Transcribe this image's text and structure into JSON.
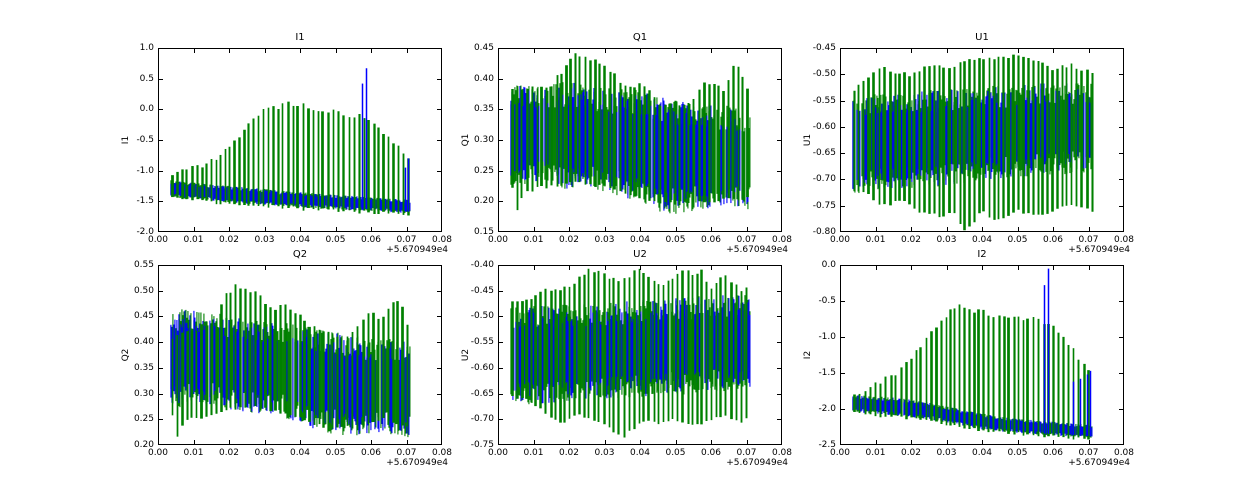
{
  "figure": {
    "background": "#ffffff"
  },
  "colors": {
    "series_green": "#008000",
    "series_blue": "#0000ff",
    "axis": "#000000",
    "text": "#000000"
  },
  "x_axis": {
    "offset_label": "+5.670949e4",
    "tick_labels": [
      "0.00",
      "0.01",
      "0.02",
      "0.03",
      "0.04",
      "0.05",
      "0.06",
      "0.07",
      "0.08"
    ]
  },
  "chart_data": [
    {
      "type": "line",
      "title": "I1",
      "ylabel": "I1",
      "xlim": [
        0,
        0.08
      ],
      "ylim": [
        -2.0,
        1.0
      ],
      "ytick_labels": [
        "1.0",
        "0.5",
        "0.0",
        "-0.5",
        "-1.0",
        "-1.5",
        "-2.0"
      ],
      "x_range": [
        0.0035,
        0.071
      ],
      "band_style": "solid-baseline",
      "series": {
        "blue_band": {
          "x": [
            0.0035,
            0.01,
            0.015,
            0.02,
            0.025,
            0.03,
            0.035,
            0.04,
            0.045,
            0.05,
            0.055,
            0.06,
            0.065,
            0.071
          ],
          "top": [
            -1.18,
            -1.23,
            -1.25,
            -1.28,
            -1.3,
            -1.33,
            -1.36,
            -1.38,
            -1.4,
            -1.42,
            -1.44,
            -1.46,
            -1.48,
            -1.5
          ],
          "bottom": [
            -1.4,
            -1.44,
            -1.46,
            -1.49,
            -1.51,
            -1.53,
            -1.55,
            -1.57,
            -1.59,
            -1.6,
            -1.62,
            -1.63,
            -1.65,
            -1.67
          ]
        },
        "green_spikes": {
          "spacing": 0.0014,
          "top_x": [
            0.004,
            0.007,
            0.01,
            0.013,
            0.016,
            0.019,
            0.022,
            0.025,
            0.028,
            0.031,
            0.034,
            0.037,
            0.04,
            0.043,
            0.046,
            0.049,
            0.052,
            0.055,
            0.058,
            0.061,
            0.064,
            0.067,
            0.069,
            0.071
          ],
          "top_y": [
            -1.05,
            -1.0,
            -0.95,
            -0.9,
            -0.8,
            -0.68,
            -0.5,
            -0.28,
            -0.08,
            0.0,
            0.05,
            0.1,
            0.08,
            0.04,
            0.0,
            -0.04,
            -0.08,
            -0.1,
            -0.1,
            -0.28,
            -0.45,
            -0.55,
            -0.7,
            -0.85
          ],
          "bottom_x": [
            0.004,
            0.02,
            0.04,
            0.06,
            0.071
          ],
          "bottom_y": [
            -1.45,
            -1.54,
            -1.62,
            -1.68,
            -1.71
          ]
        },
        "blue_extra_spikes": [
          [
            0.0575,
            0.42
          ],
          [
            0.0585,
            0.67
          ],
          [
            0.0695,
            -0.95
          ],
          [
            0.0705,
            -0.8
          ]
        ]
      }
    },
    {
      "type": "line",
      "title": "Q1",
      "ylabel": "Q1",
      "xlim": [
        0,
        0.08
      ],
      "ylim": [
        0.15,
        0.45
      ],
      "ytick_labels": [
        "0.45",
        "0.40",
        "0.35",
        "0.30",
        "0.25",
        "0.20",
        "0.15"
      ],
      "x_range": [
        0.0035,
        0.071
      ],
      "band_style": "mixed",
      "series": {
        "blue_band": {
          "x": [
            0.0035,
            0.01,
            0.02,
            0.03,
            0.04,
            0.048,
            0.055,
            0.06,
            0.065,
            0.071
          ],
          "top": [
            0.375,
            0.37,
            0.375,
            0.365,
            0.36,
            0.345,
            0.34,
            0.34,
            0.335,
            0.33
          ],
          "bottom": [
            0.245,
            0.25,
            0.24,
            0.235,
            0.22,
            0.2,
            0.205,
            0.205,
            0.21,
            0.205
          ]
        },
        "green_spikes": {
          "spacing": 0.0014,
          "top_x": [
            0.004,
            0.01,
            0.015,
            0.019,
            0.021,
            0.024,
            0.027,
            0.03,
            0.033,
            0.036,
            0.04,
            0.043,
            0.046,
            0.05,
            0.053,
            0.056,
            0.058,
            0.061,
            0.064,
            0.066,
            0.068,
            0.07,
            0.071
          ],
          "top_y": [
            0.385,
            0.385,
            0.39,
            0.42,
            0.44,
            0.435,
            0.43,
            0.42,
            0.405,
            0.385,
            0.39,
            0.375,
            0.355,
            0.36,
            0.36,
            0.375,
            0.39,
            0.395,
            0.38,
            0.42,
            0.415,
            0.39,
            0.375
          ],
          "bottom_x": [
            0.004,
            0.005,
            0.007,
            0.01,
            0.02,
            0.03,
            0.04,
            0.05,
            0.06,
            0.071
          ],
          "bottom_y": [
            0.22,
            0.18,
            0.21,
            0.22,
            0.23,
            0.225,
            0.205,
            0.195,
            0.2,
            0.205
          ]
        },
        "blue_extra_spikes": []
      }
    },
    {
      "type": "line",
      "title": "U1",
      "ylabel": "U1",
      "xlim": [
        0,
        0.08
      ],
      "ylim": [
        -0.8,
        -0.45
      ],
      "ytick_labels": [
        "-0.45",
        "-0.50",
        "-0.55",
        "-0.60",
        "-0.65",
        "-0.70",
        "-0.75",
        "-0.80"
      ],
      "x_range": [
        0.0035,
        0.071
      ],
      "band_style": "mixed",
      "series": {
        "blue_band": {
          "x": [
            0.0035,
            0.01,
            0.02,
            0.03,
            0.04,
            0.05,
            0.06,
            0.071
          ],
          "top": [
            -0.565,
            -0.56,
            -0.555,
            -0.55,
            -0.545,
            -0.54,
            -0.535,
            -0.535
          ],
          "bottom": [
            -0.705,
            -0.7,
            -0.695,
            -0.69,
            -0.68,
            -0.675,
            -0.67,
            -0.665
          ]
        },
        "green_spikes": {
          "spacing": 0.0014,
          "top_x": [
            0.004,
            0.008,
            0.012,
            0.016,
            0.02,
            0.025,
            0.03,
            0.035,
            0.04,
            0.045,
            0.05,
            0.055,
            0.06,
            0.065,
            0.068,
            0.071
          ],
          "top_y": [
            -0.53,
            -0.5,
            -0.49,
            -0.5,
            -0.5,
            -0.48,
            -0.49,
            -0.475,
            -0.47,
            -0.47,
            -0.465,
            -0.47,
            -0.49,
            -0.48,
            -0.49,
            -0.5
          ],
          "bottom_x": [
            0.004,
            0.008,
            0.012,
            0.018,
            0.022,
            0.028,
            0.032,
            0.035,
            0.04,
            0.043,
            0.05,
            0.055,
            0.06,
            0.065,
            0.071
          ],
          "bottom_y": [
            -0.72,
            -0.73,
            -0.75,
            -0.74,
            -0.76,
            -0.77,
            -0.76,
            -0.8,
            -0.76,
            -0.78,
            -0.76,
            -0.77,
            -0.76,
            -0.75,
            -0.76
          ]
        },
        "blue_extra_spikes": []
      }
    },
    {
      "type": "line",
      "title": "Q2",
      "ylabel": "Q2",
      "xlim": [
        0,
        0.08
      ],
      "ylim": [
        0.2,
        0.55
      ],
      "ytick_labels": [
        "0.55",
        "0.50",
        "0.45",
        "0.40",
        "0.35",
        "0.30",
        "0.25",
        "0.20"
      ],
      "x_range": [
        0.0035,
        0.071
      ],
      "band_style": "mixed",
      "series": {
        "blue_band": {
          "x": [
            0.0035,
            0.01,
            0.015,
            0.02,
            0.025,
            0.03,
            0.035,
            0.04,
            0.045,
            0.05,
            0.055,
            0.06,
            0.065,
            0.071
          ],
          "top": [
            0.445,
            0.44,
            0.44,
            0.43,
            0.425,
            0.42,
            0.42,
            0.415,
            0.4,
            0.395,
            0.39,
            0.385,
            0.385,
            0.38
          ],
          "bottom": [
            0.295,
            0.3,
            0.3,
            0.29,
            0.285,
            0.28,
            0.275,
            0.265,
            0.25,
            0.245,
            0.24,
            0.245,
            0.24,
            0.235
          ]
        },
        "green_spikes": {
          "spacing": 0.0014,
          "top_x": [
            0.004,
            0.008,
            0.012,
            0.016,
            0.019,
            0.022,
            0.025,
            0.028,
            0.03,
            0.033,
            0.036,
            0.04,
            0.043,
            0.046,
            0.05,
            0.053,
            0.056,
            0.06,
            0.063,
            0.065,
            0.068,
            0.07,
            0.071
          ],
          "top_y": [
            0.41,
            0.42,
            0.43,
            0.44,
            0.49,
            0.51,
            0.5,
            0.5,
            0.48,
            0.465,
            0.47,
            0.45,
            0.43,
            0.42,
            0.41,
            0.415,
            0.43,
            0.46,
            0.445,
            0.47,
            0.48,
            0.44,
            0.42
          ],
          "bottom_x": [
            0.004,
            0.005,
            0.008,
            0.012,
            0.016,
            0.02,
            0.025,
            0.03,
            0.035,
            0.04,
            0.045,
            0.048,
            0.052,
            0.056,
            0.06,
            0.064,
            0.068,
            0.071
          ],
          "bottom_y": [
            0.26,
            0.21,
            0.25,
            0.25,
            0.26,
            0.27,
            0.275,
            0.27,
            0.26,
            0.25,
            0.24,
            0.225,
            0.24,
            0.23,
            0.245,
            0.25,
            0.24,
            0.235
          ]
        },
        "blue_extra_spikes": []
      }
    },
    {
      "type": "line",
      "title": "U2",
      "ylabel": "U2",
      "xlim": [
        0,
        0.08
      ],
      "ylim": [
        -0.75,
        -0.4
      ],
      "ytick_labels": [
        "-0.40",
        "-0.45",
        "-0.50",
        "-0.55",
        "-0.60",
        "-0.65",
        "-0.70",
        "-0.75"
      ],
      "x_range": [
        0.0035,
        0.071
      ],
      "band_style": "mixed",
      "series": {
        "blue_band": {
          "x": [
            0.0035,
            0.01,
            0.02,
            0.03,
            0.04,
            0.05,
            0.06,
            0.071
          ],
          "top": [
            -0.505,
            -0.5,
            -0.5,
            -0.495,
            -0.49,
            -0.485,
            -0.48,
            -0.48
          ],
          "bottom": [
            -0.65,
            -0.65,
            -0.645,
            -0.64,
            -0.635,
            -0.63,
            -0.625,
            -0.62
          ]
        },
        "green_spikes": {
          "spacing": 0.0014,
          "top_x": [
            0.004,
            0.01,
            0.013,
            0.02,
            0.025,
            0.03,
            0.035,
            0.038,
            0.04,
            0.045,
            0.05,
            0.053,
            0.055,
            0.057,
            0.06,
            0.063,
            0.065,
            0.067,
            0.069,
            0.071
          ],
          "top_y": [
            -0.47,
            -0.46,
            -0.45,
            -0.445,
            -0.41,
            -0.42,
            -0.43,
            -0.415,
            -0.41,
            -0.44,
            -0.42,
            -0.405,
            -0.42,
            -0.41,
            -0.45,
            -0.42,
            -0.43,
            -0.44,
            -0.45,
            -0.44
          ],
          "bottom_x": [
            0.004,
            0.008,
            0.012,
            0.018,
            0.022,
            0.026,
            0.03,
            0.035,
            0.038,
            0.042,
            0.045,
            0.05,
            0.055,
            0.06,
            0.065,
            0.068,
            0.071
          ],
          "bottom_y": [
            -0.655,
            -0.66,
            -0.68,
            -0.71,
            -0.69,
            -0.7,
            -0.71,
            -0.735,
            -0.72,
            -0.7,
            -0.71,
            -0.7,
            -0.715,
            -0.7,
            -0.695,
            -0.71,
            -0.695
          ]
        },
        "blue_extra_spikes": []
      }
    },
    {
      "type": "line",
      "title": "I2",
      "ylabel": "I2",
      "xlim": [
        0,
        0.08
      ],
      "ylim": [
        -2.5,
        0.0
      ],
      "ytick_labels": [
        "0.0",
        "-0.5",
        "-1.0",
        "-1.5",
        "-2.0",
        "-2.5"
      ],
      "x_range": [
        0.0035,
        0.071
      ],
      "band_style": "solid-baseline",
      "series": {
        "blue_band": {
          "x": [
            0.0035,
            0.01,
            0.015,
            0.02,
            0.025,
            0.03,
            0.035,
            0.04,
            0.045,
            0.05,
            0.055,
            0.06,
            0.065,
            0.071
          ],
          "top": [
            -1.83,
            -1.85,
            -1.87,
            -1.9,
            -1.94,
            -1.99,
            -2.04,
            -2.09,
            -2.13,
            -2.16,
            -2.18,
            -2.2,
            -2.22,
            -2.24
          ],
          "bottom": [
            -2.02,
            -2.04,
            -2.06,
            -2.09,
            -2.12,
            -2.16,
            -2.21,
            -2.26,
            -2.29,
            -2.31,
            -2.33,
            -2.35,
            -2.36,
            -2.38
          ]
        },
        "green_spikes": {
          "spacing": 0.0014,
          "top_x": [
            0.004,
            0.008,
            0.012,
            0.016,
            0.02,
            0.024,
            0.028,
            0.031,
            0.034,
            0.037,
            0.04,
            0.044,
            0.048,
            0.052,
            0.056,
            0.06,
            0.063,
            0.066,
            0.068,
            0.07,
            0.071
          ],
          "top_y": [
            -1.8,
            -1.7,
            -1.6,
            -1.5,
            -1.3,
            -1.05,
            -0.8,
            -0.65,
            -0.57,
            -0.62,
            -0.65,
            -0.7,
            -0.72,
            -0.75,
            -0.75,
            -0.85,
            -1.0,
            -1.2,
            -1.35,
            -1.5,
            -1.55
          ],
          "bottom_x": [
            0.004,
            0.02,
            0.04,
            0.06,
            0.071
          ],
          "bottom_y": [
            -2.06,
            -2.13,
            -2.3,
            -2.38,
            -2.42
          ]
        },
        "blue_extra_spikes": [
          [
            0.0575,
            -0.28
          ],
          [
            0.0585,
            -0.05
          ],
          [
            0.0655,
            -1.62
          ],
          [
            0.0675,
            -1.58
          ],
          [
            0.0695,
            -1.52
          ],
          [
            0.0705,
            -1.47
          ]
        ]
      }
    }
  ]
}
